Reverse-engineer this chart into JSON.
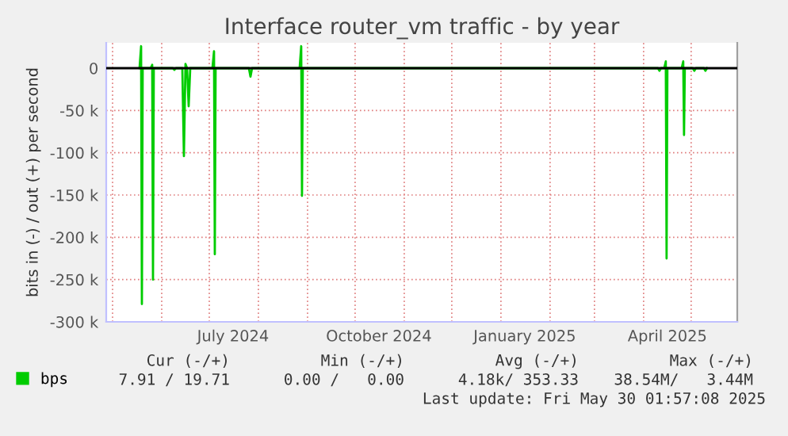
{
  "chart_data": {
    "type": "line",
    "title": "Interface router_vm traffic - by year",
    "ylabel": "bits in (-) / out (+) per second",
    "xlim": [
      "2024-04-27",
      "2025-05-30T02:00"
    ],
    "xticks": [
      {
        "value": "2024-05-01",
        "label": null
      },
      {
        "value": "2024-06-01",
        "label": null
      },
      {
        "value": "2024-07-01",
        "label": null
      },
      {
        "value": "2024-07-16",
        "label": "July 2024"
      },
      {
        "value": "2024-08-01",
        "label": null
      },
      {
        "value": "2024-09-01",
        "label": null
      },
      {
        "value": "2024-10-01",
        "label": null
      },
      {
        "value": "2024-10-16",
        "label": "October 2024"
      },
      {
        "value": "2024-11-01",
        "label": null
      },
      {
        "value": "2024-12-01",
        "label": null
      },
      {
        "value": "2025-01-01",
        "label": null
      },
      {
        "value": "2025-01-16",
        "label": "January 2025"
      },
      {
        "value": "2025-02-01",
        "label": null
      },
      {
        "value": "2025-03-01",
        "label": null
      },
      {
        "value": "2025-04-01",
        "label": null
      },
      {
        "value": "2025-04-16",
        "label": "April 2025"
      },
      {
        "value": "2025-05-01",
        "label": null
      }
    ],
    "ylim": [
      -300000,
      30000
    ],
    "yticks": [
      {
        "value": -300000,
        "label": "-300 k"
      },
      {
        "value": -250000,
        "label": "-250 k"
      },
      {
        "value": -200000,
        "label": "-200 k"
      },
      {
        "value": -150000,
        "label": "-150 k"
      },
      {
        "value": -100000,
        "label": "-100 k"
      },
      {
        "value": -50000,
        "label": "-50 k"
      },
      0
    ],
    "grid": true,
    "legend": "bottom",
    "ref_lines": [
      {
        "axis": "y",
        "value": 0,
        "color": "#000000"
      }
    ],
    "series": [
      {
        "name": "bps",
        "color": "#00cc00",
        "x": [
          "2024-05-18",
          "2024-05-19",
          "2024-05-19T12:00",
          "2024-05-20",
          "2024-05-25",
          "2024-05-26",
          "2024-05-26T12:00",
          "2024-05-27",
          "2024-06-08",
          "2024-06-09",
          "2024-06-10",
          "2024-06-14",
          "2024-06-15",
          "2024-06-16",
          "2024-06-17",
          "2024-06-18",
          "2024-06-19",
          "2024-07-03",
          "2024-07-04",
          "2024-07-04T12:00",
          "2024-07-05",
          "2024-07-26",
          "2024-07-27",
          "2024-07-28",
          "2024-08-27",
          "2024-08-28",
          "2024-08-28T12:00",
          "2024-08-29",
          "2025-04-10",
          "2025-04-11",
          "2025-04-12",
          "2025-04-14",
          "2025-04-15",
          "2025-04-15T12:00",
          "2025-04-16",
          "2025-04-25",
          "2025-04-26",
          "2025-04-26T12:00",
          "2025-04-27",
          "2025-05-02",
          "2025-05-03",
          "2025-05-04",
          "2025-05-09",
          "2025-05-10",
          "2025-05-11"
        ],
        "values": [
          0,
          26000,
          -279000,
          0,
          0,
          4000,
          -250000,
          0,
          0,
          -2000,
          0,
          0,
          -104000,
          5000,
          0,
          -45000,
          0,
          0,
          20000,
          -220000,
          0,
          0,
          -10000,
          0,
          0,
          26000,
          -151000,
          0,
          0,
          -3000,
          0,
          0,
          8000,
          -225000,
          0,
          0,
          8000,
          -79000,
          0,
          0,
          -3000,
          0,
          0,
          -3000,
          0
        ]
      }
    ],
    "annotations": [
      "Cur (-/+)",
      "Min (-/+)",
      "Avg (-/+)",
      "Max (-/+)",
      "7.91 / 19.71",
      "0.00 /   0.00",
      "4.18k/ 353.33",
      "38.54M/   3.44M",
      "Last update: Fri May 30 01:57:08 2025"
    ]
  }
}
